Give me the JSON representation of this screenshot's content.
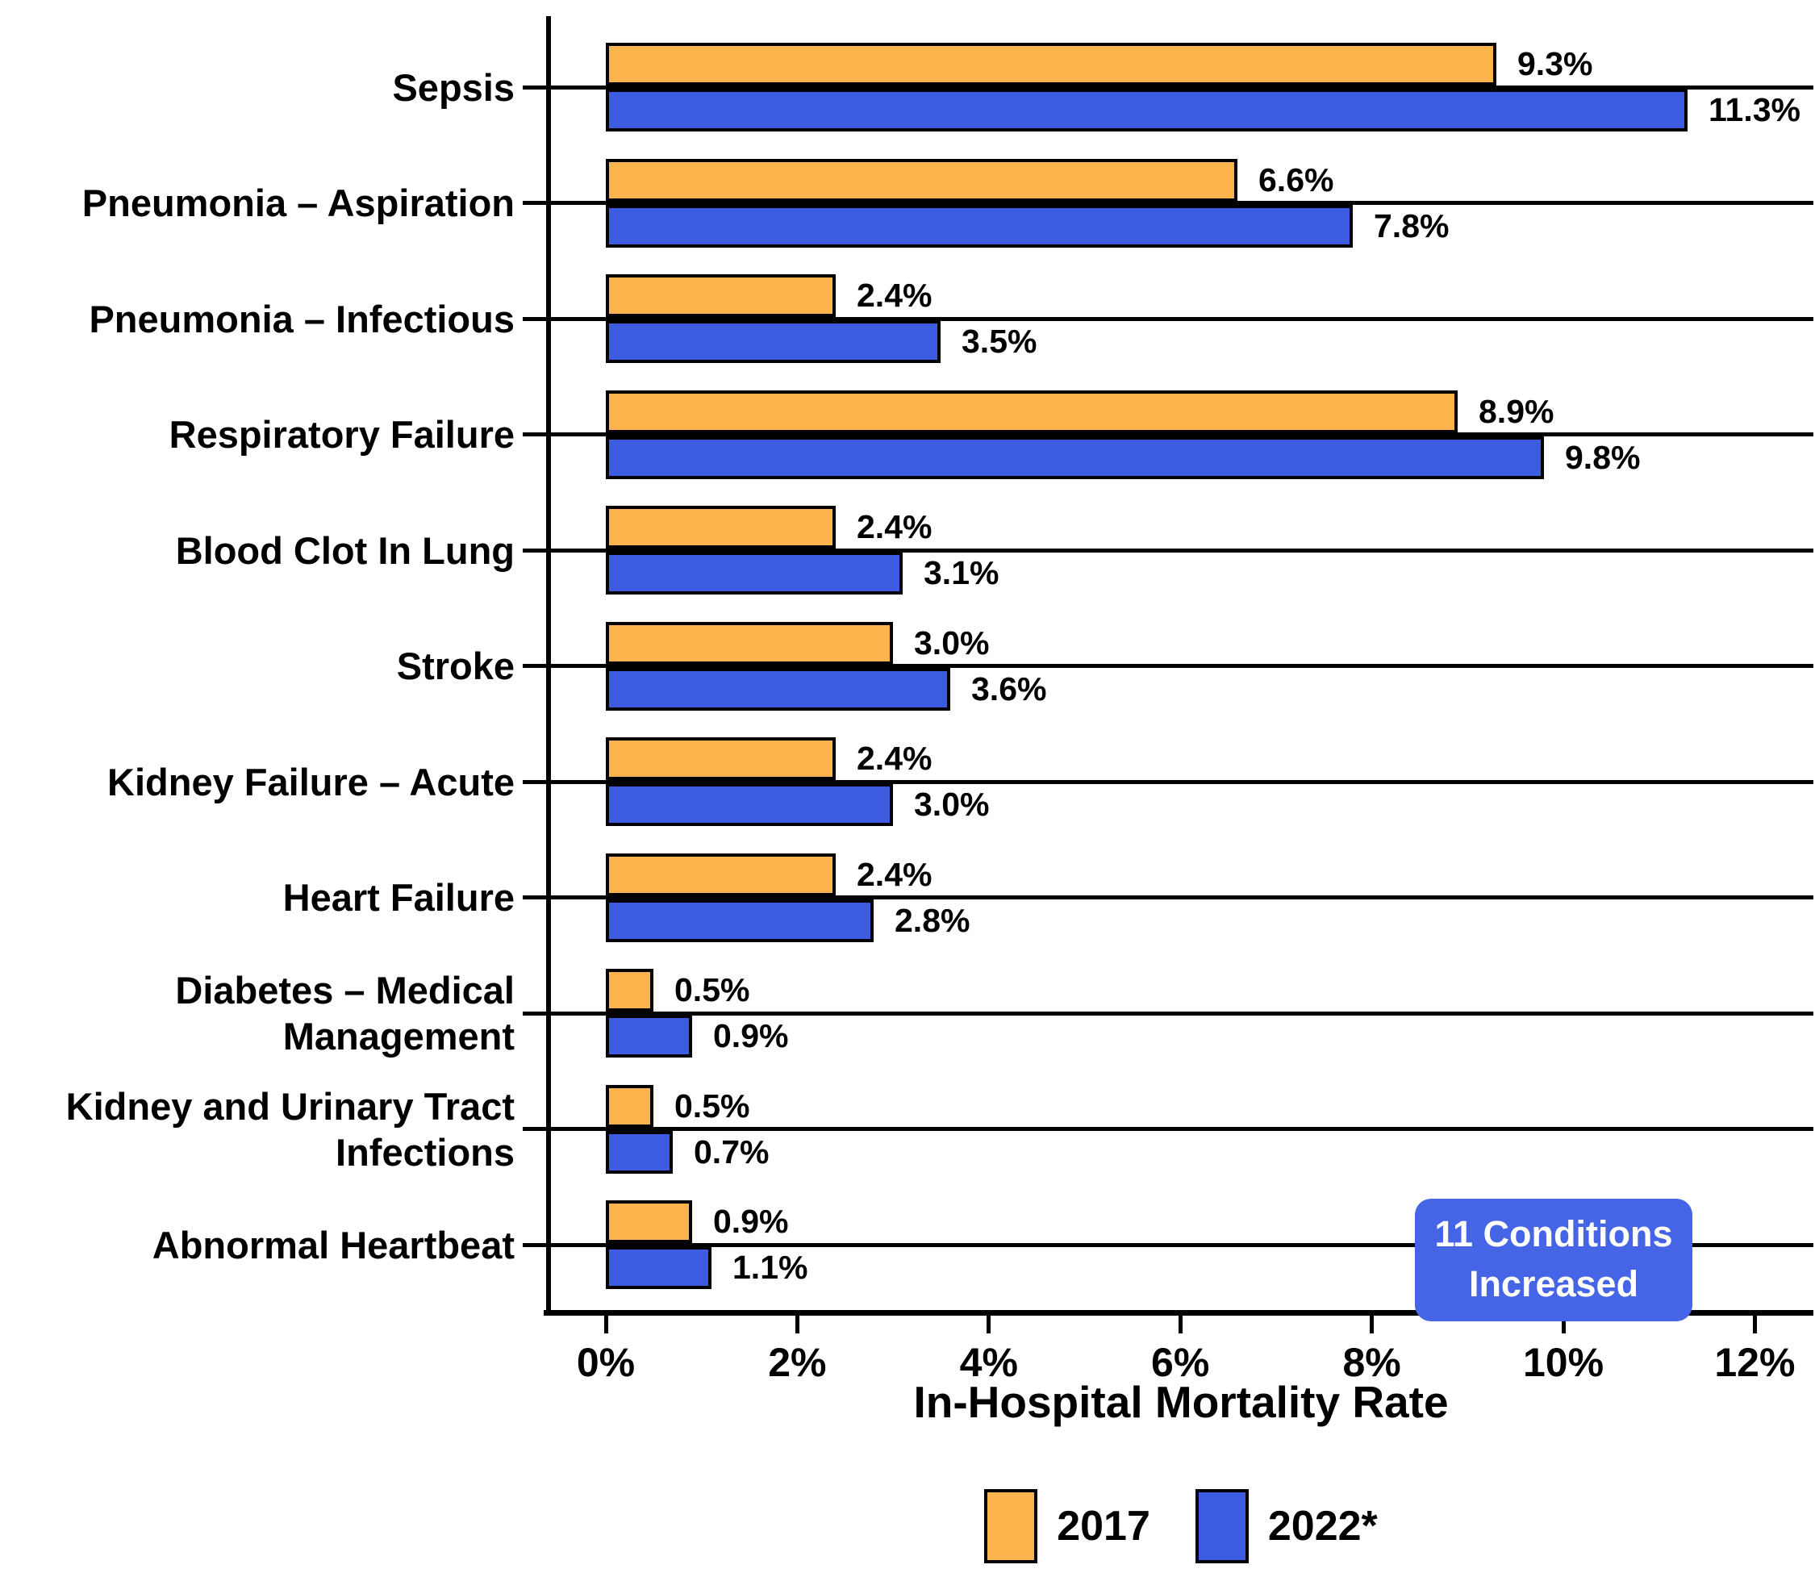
{
  "chart_data": {
    "type": "bar",
    "orientation": "horizontal",
    "xlabel": "In-Hospital Mortality Rate",
    "x_tick_values": [
      0,
      2,
      4,
      6,
      8,
      10,
      12
    ],
    "x_tick_labels": [
      "0%",
      "2%",
      "4%",
      "6%",
      "8%",
      "10%",
      "12%"
    ],
    "xlim": [
      0,
      12.6
    ],
    "grid": "per-category horizontal black lines",
    "legend_position": "bottom",
    "categories": [
      {
        "label": "Sepsis",
        "lines": [
          "Sepsis"
        ]
      },
      {
        "label": "Pneumonia – Aspiration",
        "lines": [
          "Pneumonia – Aspiration"
        ]
      },
      {
        "label": "Pneumonia – Infectious",
        "lines": [
          "Pneumonia – Infectious"
        ]
      },
      {
        "label": "Respiratory Failure",
        "lines": [
          "Respiratory Failure"
        ]
      },
      {
        "label": "Blood Clot In Lung",
        "lines": [
          "Blood Clot In Lung"
        ]
      },
      {
        "label": "Stroke",
        "lines": [
          "Stroke"
        ]
      },
      {
        "label": "Kidney Failure – Acute",
        "lines": [
          "Kidney Failure – Acute"
        ]
      },
      {
        "label": "Heart Failure",
        "lines": [
          "Heart Failure"
        ]
      },
      {
        "label": "Diabetes – Medical Management",
        "lines": [
          "Diabetes – Medical",
          "Management"
        ]
      },
      {
        "label": "Kidney and Urinary Tract Infections",
        "lines": [
          "Kidney and Urinary Tract",
          "Infections"
        ]
      },
      {
        "label": "Abnormal Heartbeat",
        "lines": [
          "Abnormal Heartbeat"
        ]
      }
    ],
    "series": [
      {
        "name": "2017",
        "color": "#FDB44D",
        "values": [
          9.3,
          6.6,
          2.4,
          8.9,
          2.4,
          3.0,
          2.4,
          2.4,
          0.5,
          0.5,
          0.9
        ],
        "value_labels": [
          "9.3%",
          "6.6%",
          "2.4%",
          "8.9%",
          "2.4%",
          "3.0%",
          "2.4%",
          "2.4%",
          "0.5%",
          "0.5%",
          "0.9%"
        ]
      },
      {
        "name": "2022*",
        "color": "#3E5CE2",
        "values": [
          11.3,
          7.8,
          3.5,
          9.8,
          3.1,
          3.6,
          3.0,
          2.8,
          0.9,
          0.7,
          1.1
        ],
        "value_labels": [
          "11.3%",
          "7.8%",
          "3.5%",
          "9.8%",
          "3.1%",
          "3.6%",
          "3.0%",
          "2.8%",
          "0.9%",
          "0.7%",
          "1.1%"
        ]
      }
    ],
    "annotation": {
      "lines": [
        "11 Conditions",
        "Increased"
      ],
      "bg_color": "#4565E6",
      "text_color": "#FFFFFF"
    },
    "legend": {
      "entries": [
        {
          "label": "2017",
          "color": "#FDB44D"
        },
        {
          "label": "2022*",
          "color": "#3E5CE2"
        }
      ]
    }
  },
  "colors": {
    "background": "#FFFFFF",
    "bar_border": "#000000",
    "axis": "#000000",
    "text": "#000000"
  }
}
